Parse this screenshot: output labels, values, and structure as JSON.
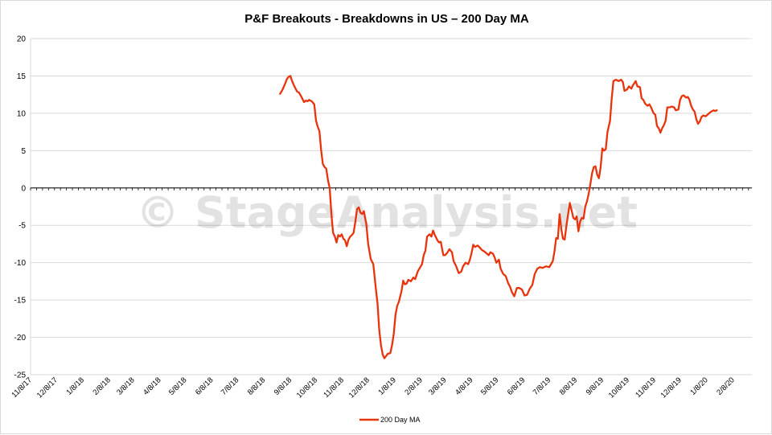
{
  "chart_data": {
    "type": "line",
    "title": "P&F Breakouts - Breakdowns in US – 200 Day MA",
    "xlabel": "",
    "ylabel": "",
    "ylim": [
      -25,
      20
    ],
    "yticks": [
      20,
      15,
      10,
      5,
      0,
      -5,
      -10,
      -15,
      -20,
      -25
    ],
    "xlim": [
      "2017-11-08",
      "2020-03-01"
    ],
    "xtick_labels": [
      "11/8/17",
      "12/8/17",
      "1/8/18",
      "2/8/18",
      "3/8/18",
      "4/8/18",
      "5/8/18",
      "6/8/18",
      "7/8/18",
      "8/8/18",
      "9/8/18",
      "10/8/18",
      "11/8/18",
      "12/8/18",
      "1/8/19",
      "2/8/19",
      "3/8/19",
      "4/8/19",
      "5/8/19",
      "6/8/19",
      "7/8/19",
      "8/8/19",
      "9/8/19",
      "10/8/19",
      "11/8/19",
      "12/8/19",
      "1/8/20",
      "2/8/20"
    ],
    "xtick_dates": [
      "2017-11-08",
      "2017-12-08",
      "2018-01-08",
      "2018-02-08",
      "2018-03-08",
      "2018-04-08",
      "2018-05-08",
      "2018-06-08",
      "2018-07-08",
      "2018-08-08",
      "2018-09-08",
      "2018-10-08",
      "2018-11-08",
      "2018-12-08",
      "2019-01-08",
      "2019-02-08",
      "2019-03-08",
      "2019-04-08",
      "2019-05-08",
      "2019-06-08",
      "2019-07-08",
      "2019-08-08",
      "2019-09-08",
      "2019-10-08",
      "2019-11-08",
      "2019-12-08",
      "2020-01-08",
      "2020-02-08"
    ],
    "grid": true,
    "legend_position": "bottom",
    "series": [
      {
        "name": "200 Day MA",
        "color": "#e8340c",
        "points": [
          [
            "2018-08-27",
            12.6
          ],
          [
            "2018-08-30",
            13.2
          ],
          [
            "2018-09-02",
            14.0
          ],
          [
            "2018-09-04",
            14.6
          ],
          [
            "2018-09-06",
            14.9
          ],
          [
            "2018-09-08",
            15.0
          ],
          [
            "2018-09-10",
            14.3
          ],
          [
            "2018-09-12",
            13.8
          ],
          [
            "2018-09-14",
            13.3
          ],
          [
            "2018-09-16",
            12.9
          ],
          [
            "2018-09-18",
            12.8
          ],
          [
            "2018-09-21",
            12.2
          ],
          [
            "2018-09-24",
            11.5
          ],
          [
            "2018-09-26",
            11.7
          ],
          [
            "2018-09-28",
            11.6
          ],
          [
            "2018-09-30",
            11.8
          ],
          [
            "2018-10-03",
            11.6
          ],
          [
            "2018-10-06",
            11.2
          ],
          [
            "2018-10-08",
            9.0
          ],
          [
            "2018-10-10",
            8.2
          ],
          [
            "2018-10-12",
            7.6
          ],
          [
            "2018-10-14",
            5.0
          ],
          [
            "2018-10-16",
            3.2
          ],
          [
            "2018-10-18",
            2.8
          ],
          [
            "2018-10-20",
            2.6
          ],
          [
            "2018-10-22",
            1.0
          ],
          [
            "2018-10-24",
            0.0
          ],
          [
            "2018-10-26",
            -3.5
          ],
          [
            "2018-10-28",
            -6.0
          ],
          [
            "2018-10-30",
            -6.5
          ],
          [
            "2018-11-01",
            -7.3
          ],
          [
            "2018-11-03",
            -6.3
          ],
          [
            "2018-11-05",
            -6.5
          ],
          [
            "2018-11-07",
            -6.2
          ],
          [
            "2018-11-09",
            -6.8
          ],
          [
            "2018-11-11",
            -7.0
          ],
          [
            "2018-11-13",
            -7.8
          ],
          [
            "2018-11-15",
            -6.9
          ],
          [
            "2018-11-17",
            -6.5
          ],
          [
            "2018-11-19",
            -6.3
          ],
          [
            "2018-11-21",
            -6.0
          ],
          [
            "2018-11-23",
            -4.5
          ],
          [
            "2018-11-25",
            -2.8
          ],
          [
            "2018-11-27",
            -2.6
          ],
          [
            "2018-11-29",
            -3.3
          ],
          [
            "2018-12-01",
            -3.5
          ],
          [
            "2018-12-03",
            -3.1
          ],
          [
            "2018-12-06",
            -5.0
          ],
          [
            "2018-12-08",
            -7.5
          ],
          [
            "2018-12-11",
            -9.5
          ],
          [
            "2018-12-14",
            -10.2
          ],
          [
            "2018-12-17",
            -13.5
          ],
          [
            "2018-12-19",
            -15.5
          ],
          [
            "2018-12-21",
            -19.0
          ],
          [
            "2018-12-23",
            -21.0
          ],
          [
            "2018-12-25",
            -22.3
          ],
          [
            "2018-12-27",
            -22.8
          ],
          [
            "2018-12-29",
            -22.5
          ],
          [
            "2018-12-31",
            -22.2
          ],
          [
            "2019-01-03",
            -22.1
          ],
          [
            "2019-01-05",
            -21.0
          ],
          [
            "2019-01-07",
            -19.5
          ],
          [
            "2019-01-09",
            -17.0
          ],
          [
            "2019-01-11",
            -15.8
          ],
          [
            "2019-01-13",
            -15.2
          ],
          [
            "2019-01-16",
            -13.8
          ],
          [
            "2019-01-18",
            -12.4
          ],
          [
            "2019-01-20",
            -12.9
          ],
          [
            "2019-01-22",
            -12.8
          ],
          [
            "2019-01-24",
            -12.3
          ],
          [
            "2019-01-27",
            -12.5
          ],
          [
            "2019-01-30",
            -12.0
          ],
          [
            "2019-02-01",
            -12.2
          ],
          [
            "2019-02-04",
            -11.2
          ],
          [
            "2019-02-07",
            -10.6
          ],
          [
            "2019-02-09",
            -10.2
          ],
          [
            "2019-02-11",
            -9.0
          ],
          [
            "2019-02-13",
            -8.4
          ],
          [
            "2019-02-15",
            -6.5
          ],
          [
            "2019-02-18",
            -6.2
          ],
          [
            "2019-02-20",
            -6.5
          ],
          [
            "2019-02-22",
            -5.7
          ],
          [
            "2019-02-24",
            -6.3
          ],
          [
            "2019-02-27",
            -7.0
          ],
          [
            "2019-03-01",
            -7.3
          ],
          [
            "2019-03-03",
            -7.2
          ],
          [
            "2019-03-06",
            -9.0
          ],
          [
            "2019-03-08",
            -9.0
          ],
          [
            "2019-03-11",
            -8.6
          ],
          [
            "2019-03-13",
            -8.2
          ],
          [
            "2019-03-16",
            -8.6
          ],
          [
            "2019-03-18",
            -9.8
          ],
          [
            "2019-03-21",
            -10.5
          ],
          [
            "2019-03-24",
            -11.4
          ],
          [
            "2019-03-27",
            -11.2
          ],
          [
            "2019-03-29",
            -10.5
          ],
          [
            "2019-04-01",
            -10.0
          ],
          [
            "2019-04-04",
            -10.2
          ],
          [
            "2019-04-06",
            -9.6
          ],
          [
            "2019-04-08",
            -8.7
          ],
          [
            "2019-04-10",
            -7.6
          ],
          [
            "2019-04-12",
            -7.9
          ],
          [
            "2019-04-15",
            -7.7
          ],
          [
            "2019-04-17",
            -7.9
          ],
          [
            "2019-04-20",
            -8.3
          ],
          [
            "2019-04-23",
            -8.5
          ],
          [
            "2019-04-25",
            -8.7
          ],
          [
            "2019-04-28",
            -9.0
          ],
          [
            "2019-04-30",
            -8.6
          ],
          [
            "2019-05-03",
            -8.8
          ],
          [
            "2019-05-05",
            -9.3
          ],
          [
            "2019-05-07",
            -10.0
          ],
          [
            "2019-05-10",
            -9.6
          ],
          [
            "2019-05-12",
            -10.8
          ],
          [
            "2019-05-15",
            -11.5
          ],
          [
            "2019-05-18",
            -11.8
          ],
          [
            "2019-05-21",
            -12.8
          ],
          [
            "2019-05-23",
            -13.2
          ],
          [
            "2019-05-25",
            -13.9
          ],
          [
            "2019-05-28",
            -14.5
          ],
          [
            "2019-05-31",
            -13.4
          ],
          [
            "2019-06-03",
            -13.4
          ],
          [
            "2019-06-06",
            -13.6
          ],
          [
            "2019-06-09",
            -14.4
          ],
          [
            "2019-06-12",
            -14.3
          ],
          [
            "2019-06-15",
            -13.5
          ],
          [
            "2019-06-18",
            -13.0
          ],
          [
            "2019-06-21",
            -11.5
          ],
          [
            "2019-06-24",
            -10.8
          ],
          [
            "2019-06-27",
            -10.6
          ],
          [
            "2019-06-30",
            -10.7
          ],
          [
            "2019-07-04",
            -10.5
          ],
          [
            "2019-07-08",
            -10.6
          ],
          [
            "2019-07-10",
            -10.2
          ],
          [
            "2019-07-12",
            -9.8
          ],
          [
            "2019-07-14",
            -8.5
          ],
          [
            "2019-07-16",
            -6.7
          ],
          [
            "2019-07-18",
            -6.8
          ],
          [
            "2019-07-20",
            -3.5
          ],
          [
            "2019-07-22",
            -5.5
          ],
          [
            "2019-07-24",
            -6.8
          ],
          [
            "2019-07-26",
            -6.9
          ],
          [
            "2019-07-28",
            -5.0
          ],
          [
            "2019-07-30",
            -3.5
          ],
          [
            "2019-08-01",
            -2.0
          ],
          [
            "2019-08-03",
            -3.0
          ],
          [
            "2019-08-05",
            -4.0
          ],
          [
            "2019-08-07",
            -4.2
          ],
          [
            "2019-08-09",
            -3.8
          ],
          [
            "2019-08-11",
            -5.8
          ],
          [
            "2019-08-13",
            -4.5
          ],
          [
            "2019-08-15",
            -4.0
          ],
          [
            "2019-08-17",
            -4.1
          ],
          [
            "2019-08-19",
            -2.5
          ],
          [
            "2019-08-21",
            -1.8
          ],
          [
            "2019-08-23",
            -0.8
          ],
          [
            "2019-08-25",
            0.5
          ],
          [
            "2019-08-27",
            2.0
          ],
          [
            "2019-08-29",
            2.8
          ],
          [
            "2019-08-31",
            2.9
          ],
          [
            "2019-09-02",
            1.8
          ],
          [
            "2019-09-04",
            1.3
          ],
          [
            "2019-09-06",
            2.8
          ],
          [
            "2019-09-08",
            5.3
          ],
          [
            "2019-09-10",
            5.0
          ],
          [
            "2019-09-12",
            5.2
          ],
          [
            "2019-09-14",
            7.5
          ],
          [
            "2019-09-17",
            9.0
          ],
          [
            "2019-09-19",
            12.0
          ],
          [
            "2019-09-21",
            14.3
          ],
          [
            "2019-09-24",
            14.5
          ],
          [
            "2019-09-27",
            14.3
          ],
          [
            "2019-09-30",
            14.5
          ],
          [
            "2019-10-02",
            14.2
          ],
          [
            "2019-10-04",
            13.0
          ],
          [
            "2019-10-07",
            13.2
          ],
          [
            "2019-10-09",
            13.6
          ],
          [
            "2019-10-12",
            13.3
          ],
          [
            "2019-10-14",
            13.8
          ],
          [
            "2019-10-17",
            14.3
          ],
          [
            "2019-10-19",
            13.6
          ],
          [
            "2019-10-22",
            13.5
          ],
          [
            "2019-10-24",
            12.0
          ],
          [
            "2019-10-26",
            11.8
          ],
          [
            "2019-10-28",
            11.3
          ],
          [
            "2019-10-31",
            11.0
          ],
          [
            "2019-11-02",
            11.2
          ],
          [
            "2019-11-04",
            10.8
          ],
          [
            "2019-11-07",
            10.0
          ],
          [
            "2019-11-09",
            9.8
          ],
          [
            "2019-11-11",
            8.3
          ],
          [
            "2019-11-13",
            8.0
          ],
          [
            "2019-11-15",
            7.4
          ],
          [
            "2019-11-17",
            8.0
          ],
          [
            "2019-11-19",
            8.4
          ],
          [
            "2019-11-21",
            9.0
          ],
          [
            "2019-11-23",
            10.8
          ],
          [
            "2019-11-26",
            10.8
          ],
          [
            "2019-11-28",
            10.9
          ],
          [
            "2019-12-01",
            10.8
          ],
          [
            "2019-12-03",
            10.4
          ],
          [
            "2019-12-06",
            10.5
          ],
          [
            "2019-12-08",
            11.8
          ],
          [
            "2019-12-10",
            12.3
          ],
          [
            "2019-12-12",
            12.4
          ],
          [
            "2019-12-15",
            12.1
          ],
          [
            "2019-12-17",
            12.2
          ],
          [
            "2019-12-19",
            11.8
          ],
          [
            "2019-12-21",
            11.0
          ],
          [
            "2019-12-23",
            10.5
          ],
          [
            "2019-12-25",
            10.2
          ],
          [
            "2019-12-27",
            9.2
          ],
          [
            "2019-12-29",
            8.6
          ],
          [
            "2019-12-31",
            8.9
          ],
          [
            "2020-01-02",
            9.5
          ],
          [
            "2020-01-04",
            9.7
          ],
          [
            "2020-01-07",
            9.6
          ],
          [
            "2020-01-10",
            9.9
          ],
          [
            "2020-01-13",
            10.2
          ],
          [
            "2020-01-16",
            10.4
          ],
          [
            "2020-01-18",
            10.3
          ],
          [
            "2020-01-20",
            10.4
          ]
        ]
      }
    ]
  },
  "watermark": "© StageAnalysis.net",
  "colors": {
    "line": "#e8340c",
    "grid": "#d9d9d9",
    "axis": "#000000"
  }
}
